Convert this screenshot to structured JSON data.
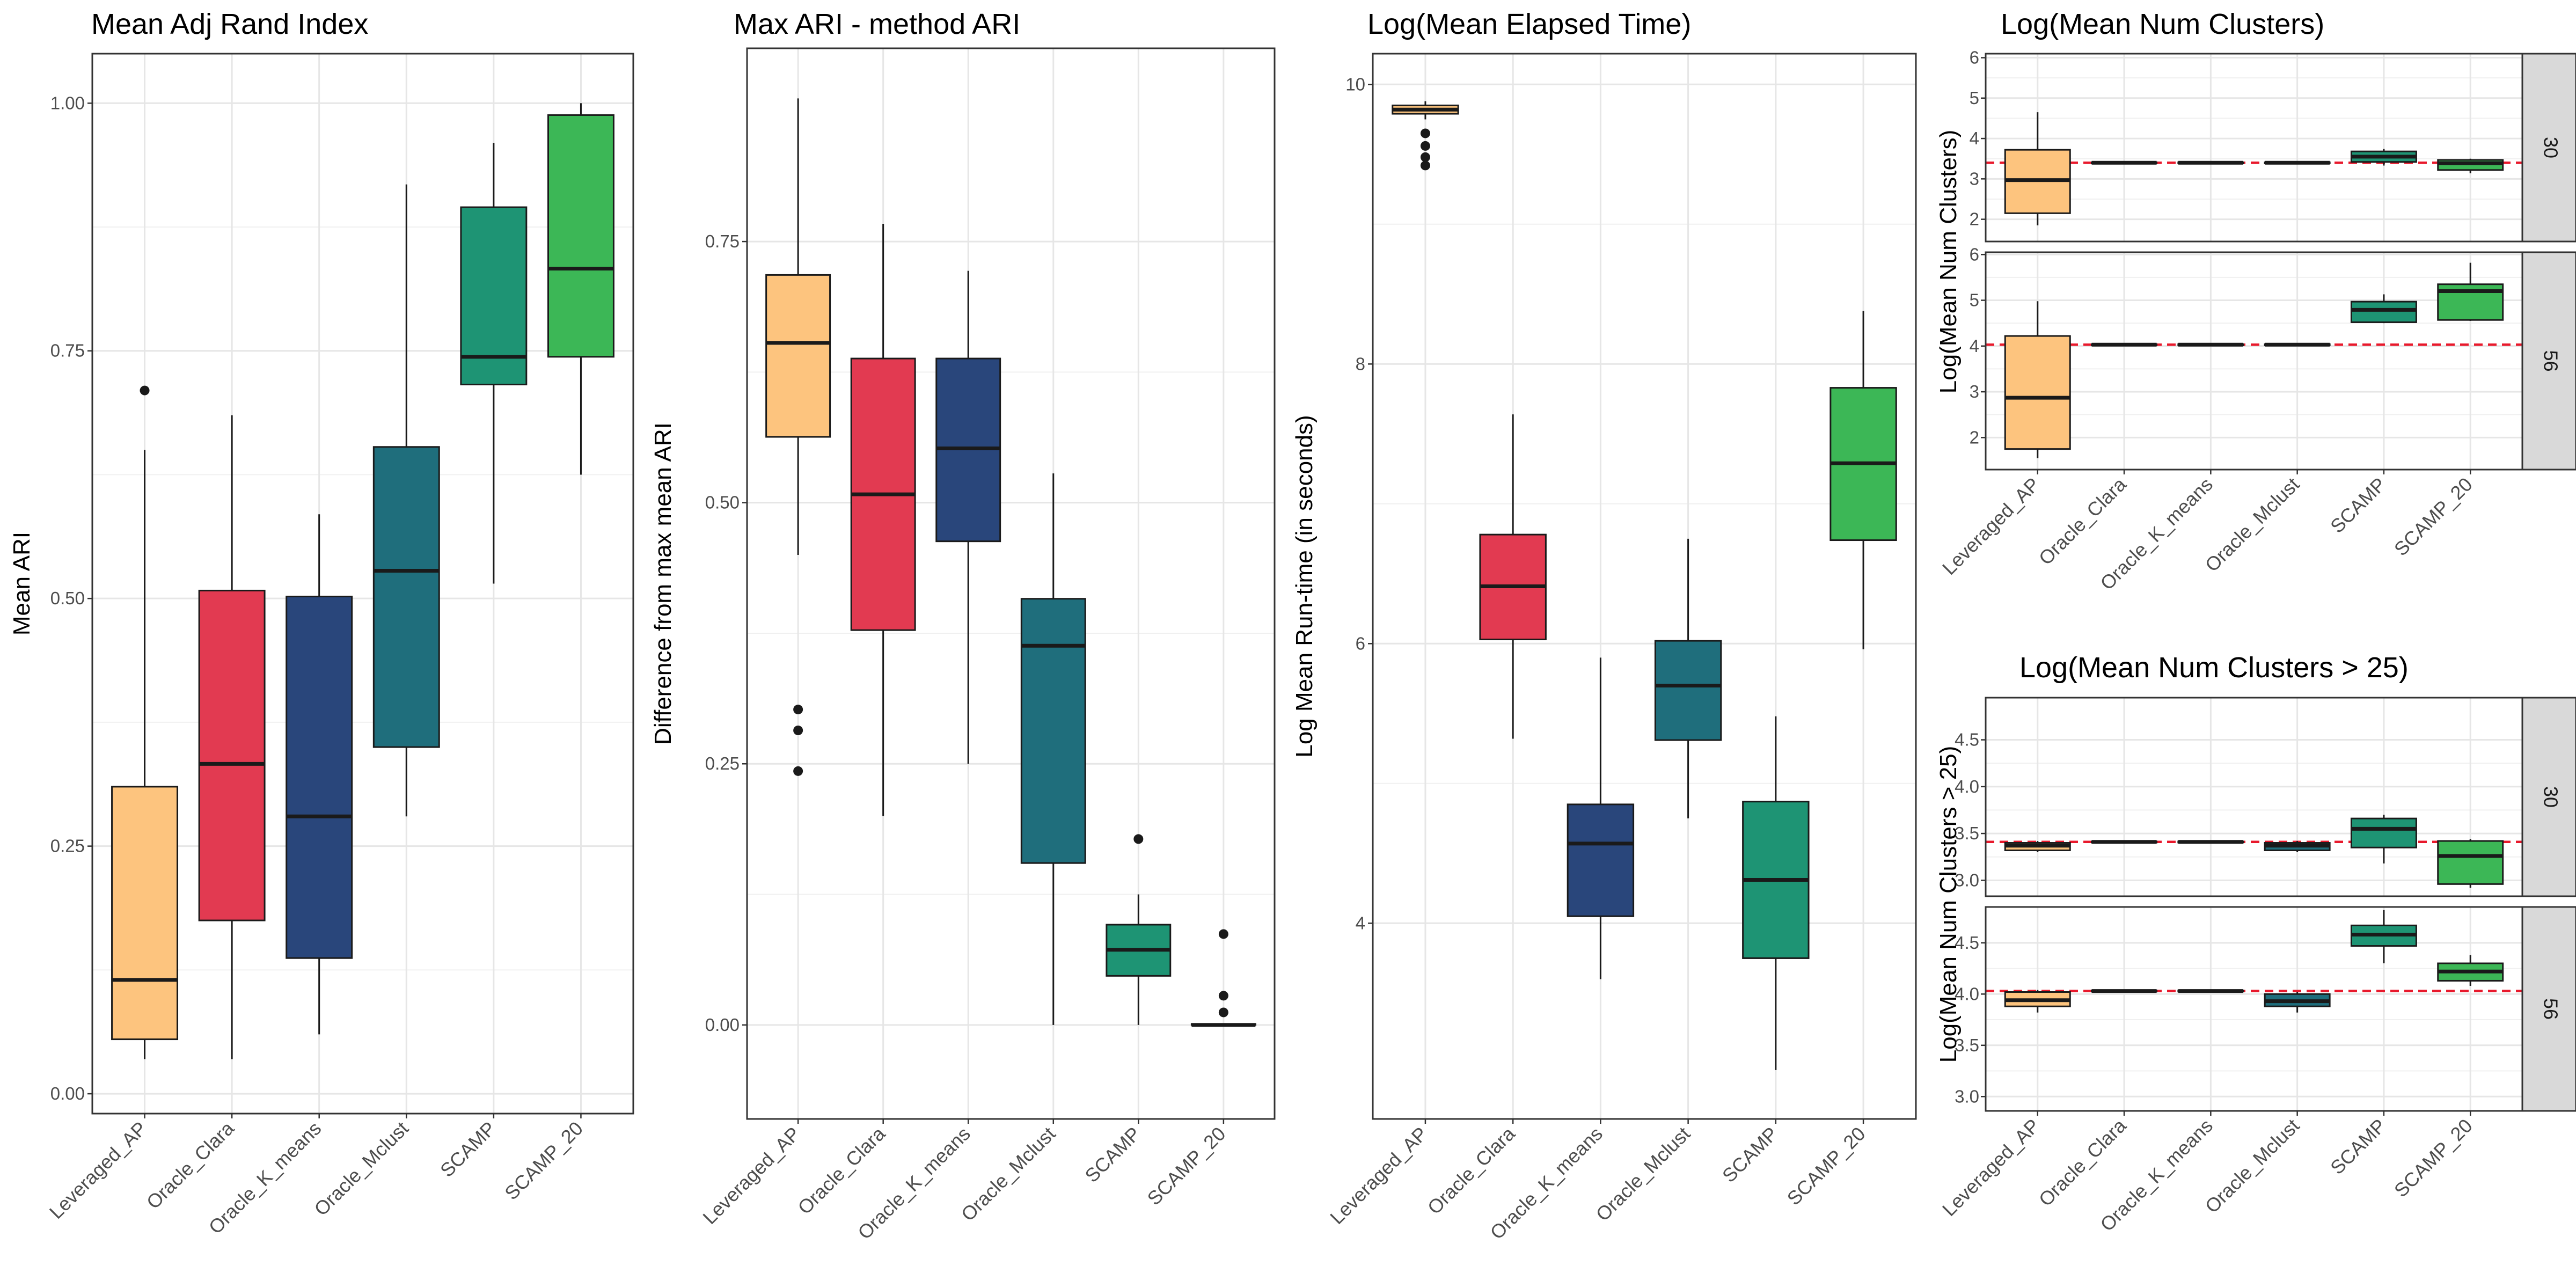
{
  "palette": {
    "Leveraged_AP": "#fdc47e",
    "Oracle_Clara": "#e23a51",
    "Oracle_K_means": "#29467b",
    "Oracle_Mclust": "#1f6e7c",
    "SCAMP": "#1e9474",
    "SCAMP_20": "#3cb756"
  },
  "chart_data": [
    {
      "id": "ari",
      "type": "boxplot",
      "title": "Mean Adj Rand Index",
      "xlabel": "",
      "ylabel": "Mean ARI",
      "ylim": [
        -0.02,
        1.05
      ],
      "yticks": [
        0.0,
        0.25,
        0.5,
        0.75,
        1.0
      ],
      "ytick_labels": [
        "0.00",
        "0.25",
        "0.50",
        "0.75",
        "1.00"
      ],
      "categories": [
        "Leveraged_AP",
        "Oracle_Clara",
        "Oracle_K_means",
        "Oracle_Mclust",
        "SCAMP",
        "SCAMP_20"
      ],
      "boxes": [
        {
          "category": "Leveraged_AP",
          "lower": 0.035,
          "q1": 0.055,
          "median": 0.115,
          "q3": 0.31,
          "upper": 0.65,
          "outliers": [
            0.71
          ]
        },
        {
          "category": "Oracle_Clara",
          "lower": 0.035,
          "q1": 0.175,
          "median": 0.333,
          "q3": 0.508,
          "upper": 0.685,
          "outliers": []
        },
        {
          "category": "Oracle_K_means",
          "lower": 0.06,
          "q1": 0.137,
          "median": 0.28,
          "q3": 0.502,
          "upper": 0.585,
          "outliers": []
        },
        {
          "category": "Oracle_Mclust",
          "lower": 0.28,
          "q1": 0.35,
          "median": 0.528,
          "q3": 0.653,
          "upper": 0.918,
          "outliers": []
        },
        {
          "category": "SCAMP",
          "lower": 0.515,
          "q1": 0.716,
          "median": 0.744,
          "q3": 0.895,
          "upper": 0.96,
          "outliers": []
        },
        {
          "category": "SCAMP_20",
          "lower": 0.625,
          "q1": 0.744,
          "median": 0.833,
          "q3": 0.988,
          "upper": 1.0,
          "outliers": []
        }
      ]
    },
    {
      "id": "maxari",
      "type": "boxplot",
      "title": "Max ARI - method ARI",
      "xlabel": "",
      "ylabel": "Difference from max mean ARI",
      "ylim": [
        -0.09,
        0.935
      ],
      "yticks": [
        0.0,
        0.25,
        0.5,
        0.75
      ],
      "ytick_labels": [
        "0.00",
        "0.25",
        "0.50",
        "0.75"
      ],
      "categories": [
        "Leveraged_AP",
        "Oracle_Clara",
        "Oracle_K_means",
        "Oracle_Mclust",
        "SCAMP",
        "SCAMP_20"
      ],
      "boxes": [
        {
          "category": "Leveraged_AP",
          "lower": 0.45,
          "q1": 0.563,
          "median": 0.653,
          "q3": 0.718,
          "upper": 0.887,
          "outliers": [
            0.302,
            0.282,
            0.243
          ]
        },
        {
          "category": "Oracle_Clara",
          "lower": 0.2,
          "q1": 0.378,
          "median": 0.508,
          "q3": 0.638,
          "upper": 0.767,
          "outliers": []
        },
        {
          "category": "Oracle_K_means",
          "lower": 0.25,
          "q1": 0.463,
          "median": 0.552,
          "q3": 0.638,
          "upper": 0.722,
          "outliers": []
        },
        {
          "category": "Oracle_Mclust",
          "lower": 0.0,
          "q1": 0.155,
          "median": 0.363,
          "q3": 0.408,
          "upper": 0.528,
          "outliers": []
        },
        {
          "category": "SCAMP",
          "lower": 0.0,
          "q1": 0.047,
          "median": 0.072,
          "q3": 0.096,
          "upper": 0.125,
          "outliers": [
            0.178
          ]
        },
        {
          "category": "SCAMP_20",
          "lower": 0.0,
          "q1": 0.0,
          "median": 0.0,
          "q3": 0.001,
          "upper": 0.001,
          "outliers": [
            0.087,
            0.028,
            0.012
          ]
        }
      ]
    },
    {
      "id": "time",
      "type": "boxplot",
      "title": "Log(Mean Elapsed Time)",
      "xlabel": "",
      "ylabel": "Log Mean Run-time (in seconds)",
      "ylim": [
        2.6,
        10.22
      ],
      "yticks": [
        4,
        6,
        8,
        10
      ],
      "ytick_labels": [
        "4",
        "6",
        "8",
        "10"
      ],
      "categories": [
        "Leveraged_AP",
        "Oracle_Clara",
        "Oracle_K_means",
        "Oracle_Mclust",
        "SCAMP",
        "SCAMP_20"
      ],
      "boxes": [
        {
          "category": "Leveraged_AP",
          "lower": 9.75,
          "q1": 9.79,
          "median": 9.82,
          "q3": 9.85,
          "upper": 9.88,
          "outliers": [
            9.65,
            9.56,
            9.48,
            9.42
          ]
        },
        {
          "category": "Oracle_Clara",
          "lower": 5.32,
          "q1": 6.03,
          "median": 6.41,
          "q3": 6.78,
          "upper": 7.64,
          "outliers": []
        },
        {
          "category": "Oracle_K_means",
          "lower": 3.6,
          "q1": 4.05,
          "median": 4.57,
          "q3": 4.85,
          "upper": 5.9,
          "outliers": []
        },
        {
          "category": "Oracle_Mclust",
          "lower": 4.75,
          "q1": 5.31,
          "median": 5.7,
          "q3": 6.02,
          "upper": 6.75,
          "outliers": []
        },
        {
          "category": "SCAMP",
          "lower": 2.95,
          "q1": 3.75,
          "median": 4.31,
          "q3": 4.87,
          "upper": 5.48,
          "outliers": []
        },
        {
          "category": "SCAMP_20",
          "lower": 5.96,
          "q1": 6.74,
          "median": 7.29,
          "q3": 7.83,
          "upper": 8.38,
          "outliers": []
        }
      ]
    },
    {
      "id": "clusters",
      "type": "boxplot",
      "title": "Log(Mean Num Clusters)",
      "xlabel": "",
      "ylabel": "Log(Mean Num Clusters)",
      "categories": [
        "Leveraged_AP",
        "Oracle_Clara",
        "Oracle_K_means",
        "Oracle_Mclust",
        "SCAMP",
        "SCAMP_20"
      ],
      "facets": [
        {
          "strip": "30",
          "ylim": [
            1.45,
            6.1
          ],
          "yticks": [
            2,
            3,
            4,
            5,
            6
          ],
          "ytick_labels": [
            "2",
            "3",
            "4",
            "5",
            "6"
          ],
          "hline": 3.4,
          "boxes": [
            {
              "category": "Leveraged_AP",
              "lower": 1.85,
              "q1": 2.15,
              "median": 2.97,
              "q3": 3.72,
              "upper": 4.65,
              "outliers": []
            },
            {
              "category": "Oracle_Clara",
              "lower": 3.38,
              "q1": 3.39,
              "median": 3.4,
              "q3": 3.41,
              "upper": 3.42,
              "outliers": []
            },
            {
              "category": "Oracle_K_means",
              "lower": 3.38,
              "q1": 3.39,
              "median": 3.4,
              "q3": 3.41,
              "upper": 3.42,
              "outliers": []
            },
            {
              "category": "Oracle_Mclust",
              "lower": 3.38,
              "q1": 3.39,
              "median": 3.4,
              "q3": 3.41,
              "upper": 3.42,
              "outliers": []
            },
            {
              "category": "SCAMP",
              "lower": 3.33,
              "q1": 3.42,
              "median": 3.55,
              "q3": 3.68,
              "upper": 3.74,
              "outliers": []
            },
            {
              "category": "SCAMP_20",
              "lower": 3.14,
              "q1": 3.22,
              "median": 3.39,
              "q3": 3.47,
              "upper": 3.5,
              "outliers": []
            }
          ]
        },
        {
          "strip": "56",
          "ylim": [
            1.3,
            6.05
          ],
          "yticks": [
            2,
            3,
            4,
            5,
            6
          ],
          "ytick_labels": [
            "2",
            "3",
            "4",
            "5",
            "6"
          ],
          "hline": 4.03,
          "boxes": [
            {
              "category": "Leveraged_AP",
              "lower": 1.55,
              "q1": 1.75,
              "median": 2.87,
              "q3": 4.22,
              "upper": 4.98,
              "outliers": []
            },
            {
              "category": "Oracle_Clara",
              "lower": 4.01,
              "q1": 4.02,
              "median": 4.03,
              "q3": 4.04,
              "upper": 4.05,
              "outliers": []
            },
            {
              "category": "Oracle_K_means",
              "lower": 4.01,
              "q1": 4.02,
              "median": 4.03,
              "q3": 4.04,
              "upper": 4.05,
              "outliers": []
            },
            {
              "category": "Oracle_Mclust",
              "lower": 4.01,
              "q1": 4.02,
              "median": 4.03,
              "q3": 4.04,
              "upper": 4.05,
              "outliers": []
            },
            {
              "category": "SCAMP",
              "lower": 4.5,
              "q1": 4.52,
              "median": 4.79,
              "q3": 4.97,
              "upper": 5.13,
              "outliers": []
            },
            {
              "category": "SCAMP_20",
              "lower": 4.55,
              "q1": 4.57,
              "median": 5.2,
              "q3": 5.35,
              "upper": 5.82,
              "outliers": []
            }
          ]
        }
      ]
    },
    {
      "id": "clusters25",
      "type": "boxplot",
      "title": "Log(Mean Num Clusters > 25)",
      "xlabel": "",
      "ylabel": "Log(Mean Num Clusters > 25)",
      "categories": [
        "Leveraged_AP",
        "Oracle_Clara",
        "Oracle_K_means",
        "Oracle_Mclust",
        "SCAMP",
        "SCAMP_20"
      ],
      "facets": [
        {
          "strip": "30",
          "ylim": [
            2.83,
            4.95
          ],
          "yticks": [
            3.0,
            3.5,
            4.0,
            4.5
          ],
          "ytick_labels": [
            "3.0",
            "3.5",
            "4.0",
            "4.5"
          ],
          "hline": 3.41,
          "boxes": [
            {
              "category": "Leveraged_AP",
              "lower": 3.3,
              "q1": 3.32,
              "median": 3.37,
              "q3": 3.4,
              "upper": 3.42,
              "outliers": []
            },
            {
              "category": "Oracle_Clara",
              "lower": 3.4,
              "q1": 3.405,
              "median": 3.41,
              "q3": 3.415,
              "upper": 3.42,
              "outliers": []
            },
            {
              "category": "Oracle_K_means",
              "lower": 3.4,
              "q1": 3.405,
              "median": 3.41,
              "q3": 3.415,
              "upper": 3.42,
              "outliers": []
            },
            {
              "category": "Oracle_Mclust",
              "lower": 3.3,
              "q1": 3.32,
              "median": 3.37,
              "q3": 3.4,
              "upper": 3.42,
              "outliers": []
            },
            {
              "category": "SCAMP",
              "lower": 3.18,
              "q1": 3.35,
              "median": 3.55,
              "q3": 3.66,
              "upper": 3.7,
              "outliers": []
            },
            {
              "category": "SCAMP_20",
              "lower": 2.92,
              "q1": 2.96,
              "median": 3.26,
              "q3": 3.42,
              "upper": 3.44,
              "outliers": []
            }
          ]
        },
        {
          "strip": "56",
          "ylim": [
            2.86,
            4.85
          ],
          "yticks": [
            3.0,
            3.5,
            4.0,
            4.5
          ],
          "ytick_labels": [
            "3.0",
            "3.5",
            "4.0",
            "4.5"
          ],
          "hline": 4.03,
          "boxes": [
            {
              "category": "Leveraged_AP",
              "lower": 3.82,
              "q1": 3.88,
              "median": 3.94,
              "q3": 4.02,
              "upper": 4.04,
              "outliers": []
            },
            {
              "category": "Oracle_Clara",
              "lower": 4.02,
              "q1": 4.025,
              "median": 4.03,
              "q3": 4.035,
              "upper": 4.04,
              "outliers": []
            },
            {
              "category": "Oracle_K_means",
              "lower": 4.02,
              "q1": 4.025,
              "median": 4.03,
              "q3": 4.035,
              "upper": 4.04,
              "outliers": []
            },
            {
              "category": "Oracle_Mclust",
              "lower": 3.82,
              "q1": 3.88,
              "median": 3.93,
              "q3": 4.0,
              "upper": 4.02,
              "outliers": []
            },
            {
              "category": "SCAMP",
              "lower": 4.3,
              "q1": 4.47,
              "median": 4.58,
              "q3": 4.67,
              "upper": 4.82,
              "outliers": []
            },
            {
              "category": "SCAMP_20",
              "lower": 4.08,
              "q1": 4.13,
              "median": 4.22,
              "q3": 4.3,
              "upper": 4.38,
              "outliers": []
            }
          ]
        }
      ]
    }
  ]
}
